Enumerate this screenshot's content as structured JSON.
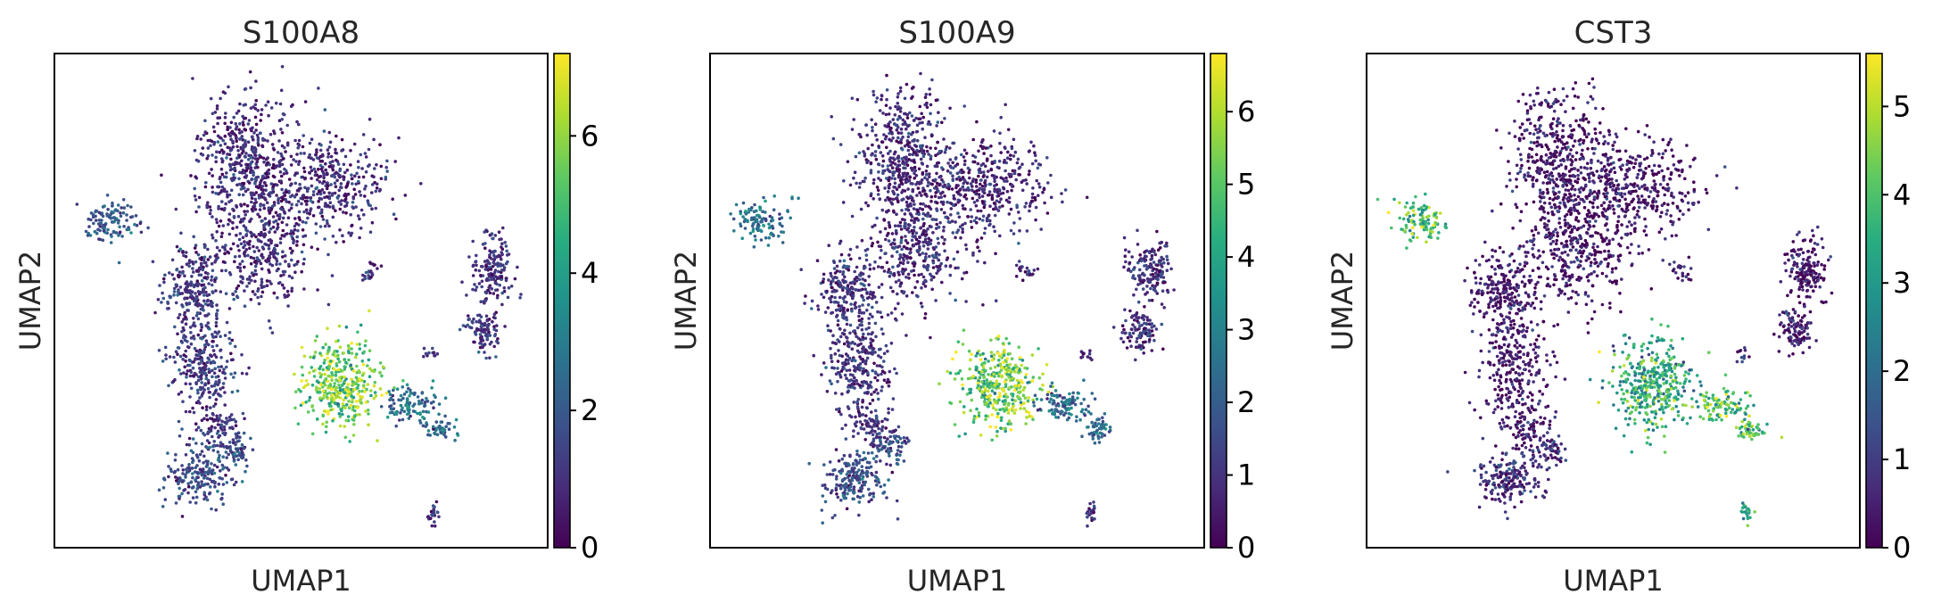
{
  "chart_data": [
    {
      "type": "scatter",
      "title": "S100A8",
      "xlabel": "UMAP1",
      "ylabel": "UMAP2",
      "colormap": "viridis",
      "colorbar": {
        "min": 0,
        "max": 7.2,
        "ticks": [
          0,
          2,
          4,
          6
        ],
        "tick_labels": [
          "0",
          "2",
          "4",
          "6"
        ]
      },
      "cluster_expression": {
        "upper_main": 0.9,
        "left_small": 2.0,
        "left_arm": 1.2,
        "bottom": 1.7,
        "cd14_mono": 5.6,
        "mono_tail": 2.6,
        "right_upper": 1.0,
        "right_lower": 1.1,
        "tiny_bottom": 1.2,
        "scatter_small": 1.0
      }
    },
    {
      "type": "scatter",
      "title": "S100A9",
      "xlabel": "UMAP1",
      "ylabel": "UMAP2",
      "colormap": "viridis",
      "colorbar": {
        "min": 0,
        "max": 6.8,
        "ticks": [
          0,
          1,
          2,
          3,
          4,
          5,
          6
        ],
        "tick_labels": [
          "0",
          "1",
          "2",
          "3",
          "4",
          "5",
          "6"
        ]
      },
      "cluster_expression": {
        "upper_main": 0.8,
        "left_small": 2.4,
        "left_arm": 1.0,
        "bottom": 1.6,
        "cd14_mono": 5.2,
        "mono_tail": 2.4,
        "right_upper": 0.9,
        "right_lower": 1.0,
        "tiny_bottom": 1.1,
        "scatter_small": 0.9
      }
    },
    {
      "type": "scatter",
      "title": "CST3",
      "xlabel": "UMAP1",
      "ylabel": "UMAP2",
      "colormap": "viridis",
      "colorbar": {
        "min": 0,
        "max": 5.6,
        "ticks": [
          0,
          1,
          2,
          3,
          4,
          5
        ],
        "tick_labels": [
          "0",
          "1",
          "2",
          "3",
          "4",
          "5"
        ]
      },
      "cluster_expression": {
        "upper_main": 0.3,
        "left_small": 3.9,
        "left_arm": 0.4,
        "bottom": 0.8,
        "cd14_mono": 3.4,
        "mono_tail": 4.0,
        "right_upper": 0.3,
        "right_lower": 0.4,
        "tiny_bottom": 3.2,
        "scatter_small": 0.5
      }
    }
  ]
}
